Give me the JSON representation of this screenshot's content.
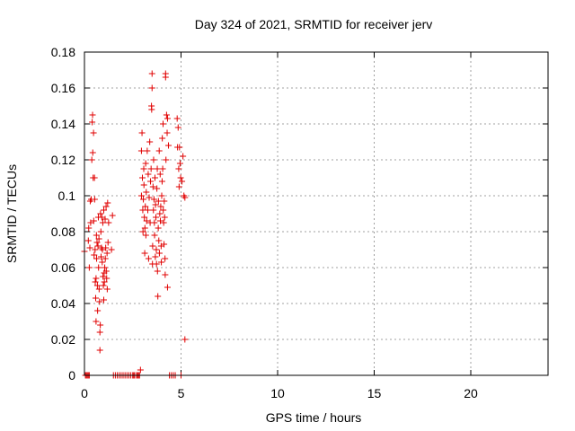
{
  "chart_data": {
    "type": "scatter",
    "title": "Day 324 of 2021, SRMTID for receiver jerv",
    "xlabel": "GPS time / hours",
    "ylabel": "SRMTID / TECUs",
    "xlim": [
      0,
      24
    ],
    "ylim": [
      0,
      0.18
    ],
    "xticks": [
      0,
      5,
      10,
      15,
      20
    ],
    "yticks": [
      0,
      0.02,
      0.04,
      0.06,
      0.08,
      0.1,
      0.12,
      0.14,
      0.16,
      0.18
    ],
    "xtick_labels": [
      "0",
      "5",
      "10",
      "15",
      "20"
    ],
    "ytick_labels": [
      "0",
      "0.02",
      "0.04",
      "0.06",
      "0.08",
      "0.1",
      "0.12",
      "0.14",
      "0.16",
      "0.18"
    ],
    "grid": true,
    "marker": "plus",
    "color": "#e00000",
    "series": [
      {
        "points": [
          [
            0.0,
            0.069
          ],
          [
            0.05,
            0.0
          ],
          [
            0.1,
            0.0
          ],
          [
            0.15,
            0.0
          ],
          [
            0.2,
            0.0
          ],
          [
            0.25,
            0.0
          ],
          [
            0.2,
            0.075
          ],
          [
            0.22,
            0.082
          ],
          [
            0.25,
            0.06
          ],
          [
            0.28,
            0.071
          ],
          [
            0.3,
            0.097
          ],
          [
            0.32,
            0.085
          ],
          [
            0.35,
            0.098
          ],
          [
            0.38,
            0.12
          ],
          [
            0.4,
            0.141
          ],
          [
            0.42,
            0.145
          ],
          [
            0.43,
            0.124
          ],
          [
            0.45,
            0.11
          ],
          [
            0.47,
            0.135
          ],
          [
            0.48,
            0.086
          ],
          [
            0.5,
            0.067
          ],
          [
            0.52,
            0.11
          ],
          [
            0.53,
            0.098
          ],
          [
            0.55,
            0.07
          ],
          [
            0.56,
            0.052
          ],
          [
            0.58,
            0.043
          ],
          [
            0.6,
            0.054
          ],
          [
            0.6,
            0.03
          ],
          [
            0.62,
            0.078
          ],
          [
            0.63,
            0.065
          ],
          [
            0.65,
            0.074
          ],
          [
            0.67,
            0.05
          ],
          [
            0.68,
            0.036
          ],
          [
            0.7,
            0.072
          ],
          [
            0.72,
            0.088
          ],
          [
            0.73,
            0.06
          ],
          [
            0.75,
            0.076
          ],
          [
            0.76,
            0.048
          ],
          [
            0.78,
            0.041
          ],
          [
            0.8,
            0.014
          ],
          [
            0.8,
            0.024
          ],
          [
            0.82,
            0.028
          ],
          [
            0.83,
            0.09
          ],
          [
            0.85,
            0.08
          ],
          [
            0.86,
            0.066
          ],
          [
            0.88,
            0.071
          ],
          [
            0.9,
            0.088
          ],
          [
            0.92,
            0.063
          ],
          [
            0.93,
            0.07
          ],
          [
            0.95,
            0.085
          ],
          [
            0.96,
            0.055
          ],
          [
            0.98,
            0.05
          ],
          [
            1.0,
            0.092
          ],
          [
            1.0,
            0.042
          ],
          [
            1.02,
            0.057
          ],
          [
            1.03,
            0.052
          ],
          [
            1.05,
            0.06
          ],
          [
            1.07,
            0.087
          ],
          [
            1.08,
            0.065
          ],
          [
            1.1,
            0.071
          ],
          [
            1.12,
            0.094
          ],
          [
            1.13,
            0.058
          ],
          [
            1.15,
            0.054
          ],
          [
            1.17,
            0.068
          ],
          [
            1.18,
            0.048
          ],
          [
            1.2,
            0.096
          ],
          [
            1.22,
            0.074
          ],
          [
            1.25,
            0.085
          ],
          [
            1.4,
            0.07
          ],
          [
            1.45,
            0.089
          ],
          [
            1.5,
            0.0
          ],
          [
            1.6,
            0.0
          ],
          [
            1.7,
            0.0
          ],
          [
            1.8,
            0.0
          ],
          [
            1.9,
            0.0
          ],
          [
            2.0,
            0.0
          ],
          [
            2.1,
            0.0
          ],
          [
            2.2,
            0.0
          ],
          [
            2.3,
            0.0
          ],
          [
            2.4,
            0.0
          ],
          [
            2.5,
            0.0
          ],
          [
            2.55,
            0.0
          ],
          [
            2.6,
            0.0
          ],
          [
            2.7,
            0.0
          ],
          [
            2.75,
            0.0
          ],
          [
            2.8,
            0.0
          ],
          [
            2.85,
            0.0
          ],
          [
            2.9,
            0.003
          ],
          [
            2.95,
            0.1
          ],
          [
            2.95,
            0.125
          ],
          [
            2.98,
            0.135
          ],
          [
            3.0,
            0.11
          ],
          [
            3.02,
            0.092
          ],
          [
            3.03,
            0.08
          ],
          [
            3.05,
            0.098
          ],
          [
            3.07,
            0.115
          ],
          [
            3.08,
            0.106
          ],
          [
            3.1,
            0.088
          ],
          [
            3.12,
            0.068
          ],
          [
            3.13,
            0.082
          ],
          [
            3.15,
            0.094
          ],
          [
            3.17,
            0.118
          ],
          [
            3.18,
            0.078
          ],
          [
            3.2,
            0.102
          ],
          [
            3.22,
            0.086
          ],
          [
            3.25,
            0.125
          ],
          [
            3.28,
            0.092
          ],
          [
            3.3,
            0.112
          ],
          [
            3.32,
            0.065
          ],
          [
            3.35,
            0.099
          ],
          [
            3.38,
            0.13
          ],
          [
            3.4,
            0.085
          ],
          [
            3.42,
            0.108
          ],
          [
            3.45,
            0.115
          ],
          [
            3.47,
            0.15
          ],
          [
            3.48,
            0.148
          ],
          [
            3.5,
            0.168
          ],
          [
            3.5,
            0.16
          ],
          [
            3.52,
            0.062
          ],
          [
            3.53,
            0.072
          ],
          [
            3.55,
            0.105
          ],
          [
            3.57,
            0.092
          ],
          [
            3.58,
            0.12
          ],
          [
            3.6,
            0.098
          ],
          [
            3.62,
            0.085
          ],
          [
            3.63,
            0.078
          ],
          [
            3.65,
            0.11
          ],
          [
            3.67,
            0.066
          ],
          [
            3.68,
            0.095
          ],
          [
            3.7,
            0.088
          ],
          [
            3.72,
            0.07
          ],
          [
            3.73,
            0.062
          ],
          [
            3.75,
            0.104
          ],
          [
            3.77,
            0.115
          ],
          [
            3.78,
            0.058
          ],
          [
            3.8,
            0.044
          ],
          [
            3.82,
            0.082
          ],
          [
            3.83,
            0.097
          ],
          [
            3.85,
            0.075
          ],
          [
            3.87,
            0.125
          ],
          [
            3.88,
            0.068
          ],
          [
            3.9,
            0.09
          ],
          [
            3.92,
            0.112
          ],
          [
            3.93,
            0.086
          ],
          [
            3.95,
            0.094
          ],
          [
            3.97,
            0.072
          ],
          [
            3.98,
            0.063
          ],
          [
            4.0,
            0.1
          ],
          [
            4.02,
            0.108
          ],
          [
            4.03,
            0.132
          ],
          [
            4.05,
            0.115
          ],
          [
            4.07,
            0.14
          ],
          [
            4.08,
            0.092
          ],
          [
            4.1,
            0.085
          ],
          [
            4.12,
            0.073
          ],
          [
            4.13,
            0.097
          ],
          [
            4.15,
            0.088
          ],
          [
            4.17,
            0.065
          ],
          [
            4.18,
            0.056
          ],
          [
            4.2,
            0.168
          ],
          [
            4.2,
            0.166
          ],
          [
            4.22,
            0.12
          ],
          [
            4.25,
            0.145
          ],
          [
            4.28,
            0.135
          ],
          [
            4.3,
            0.143
          ],
          [
            4.3,
            0.049
          ],
          [
            4.35,
            0.128
          ],
          [
            4.4,
            0.0
          ],
          [
            4.5,
            0.0
          ],
          [
            4.6,
            0.0
          ],
          [
            4.7,
            0.0
          ],
          [
            4.8,
            0.143
          ],
          [
            4.82,
            0.127
          ],
          [
            4.85,
            0.138
          ],
          [
            4.88,
            0.115
          ],
          [
            4.9,
            0.105
          ],
          [
            4.92,
            0.127
          ],
          [
            4.95,
            0.118
          ],
          [
            4.98,
            0.11
          ],
          [
            5.0,
            0.0
          ],
          [
            5.05,
            0.108
          ],
          [
            5.1,
            0.122
          ],
          [
            5.15,
            0.1
          ],
          [
            5.2,
            0.099
          ],
          [
            5.2,
            0.02
          ]
        ]
      }
    ]
  }
}
